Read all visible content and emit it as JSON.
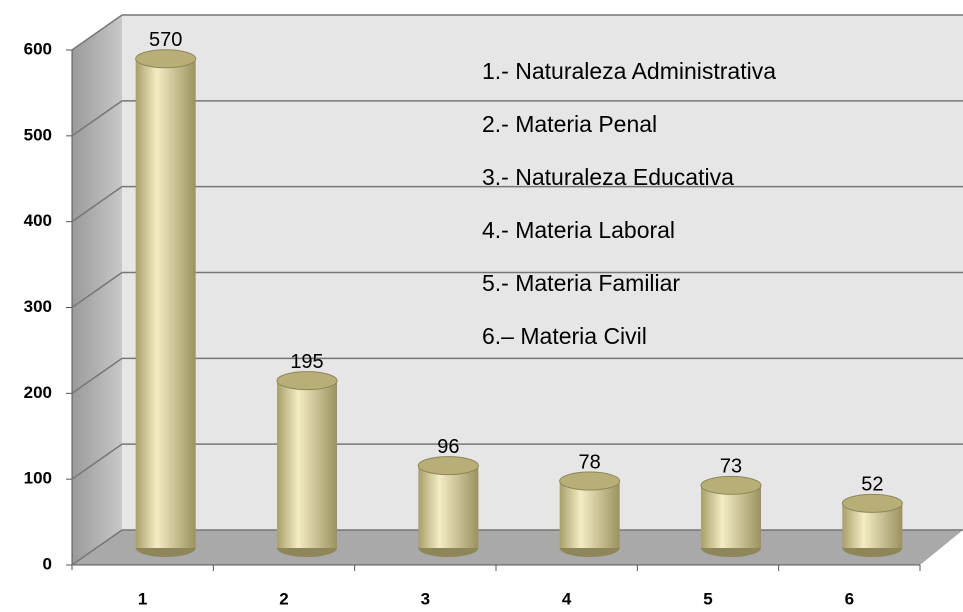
{
  "chart_data": {
    "type": "bar",
    "categories": [
      "1",
      "2",
      "3",
      "4",
      "5",
      "6"
    ],
    "values": [
      570,
      195,
      96,
      78,
      73,
      52
    ],
    "color": "#d8cf9a",
    "ylim": [
      0,
      600
    ],
    "yticks": [
      0,
      100,
      200,
      300,
      400,
      500,
      600
    ],
    "grid": true,
    "annotations": [
      "1.- Naturaleza Administrativa",
      "2.- Materia Penal",
      "3.- Naturaleza Educativa",
      "4.- Materia Laboral",
      "5.- Materia Familiar",
      "6.– Materia Civil"
    ]
  }
}
